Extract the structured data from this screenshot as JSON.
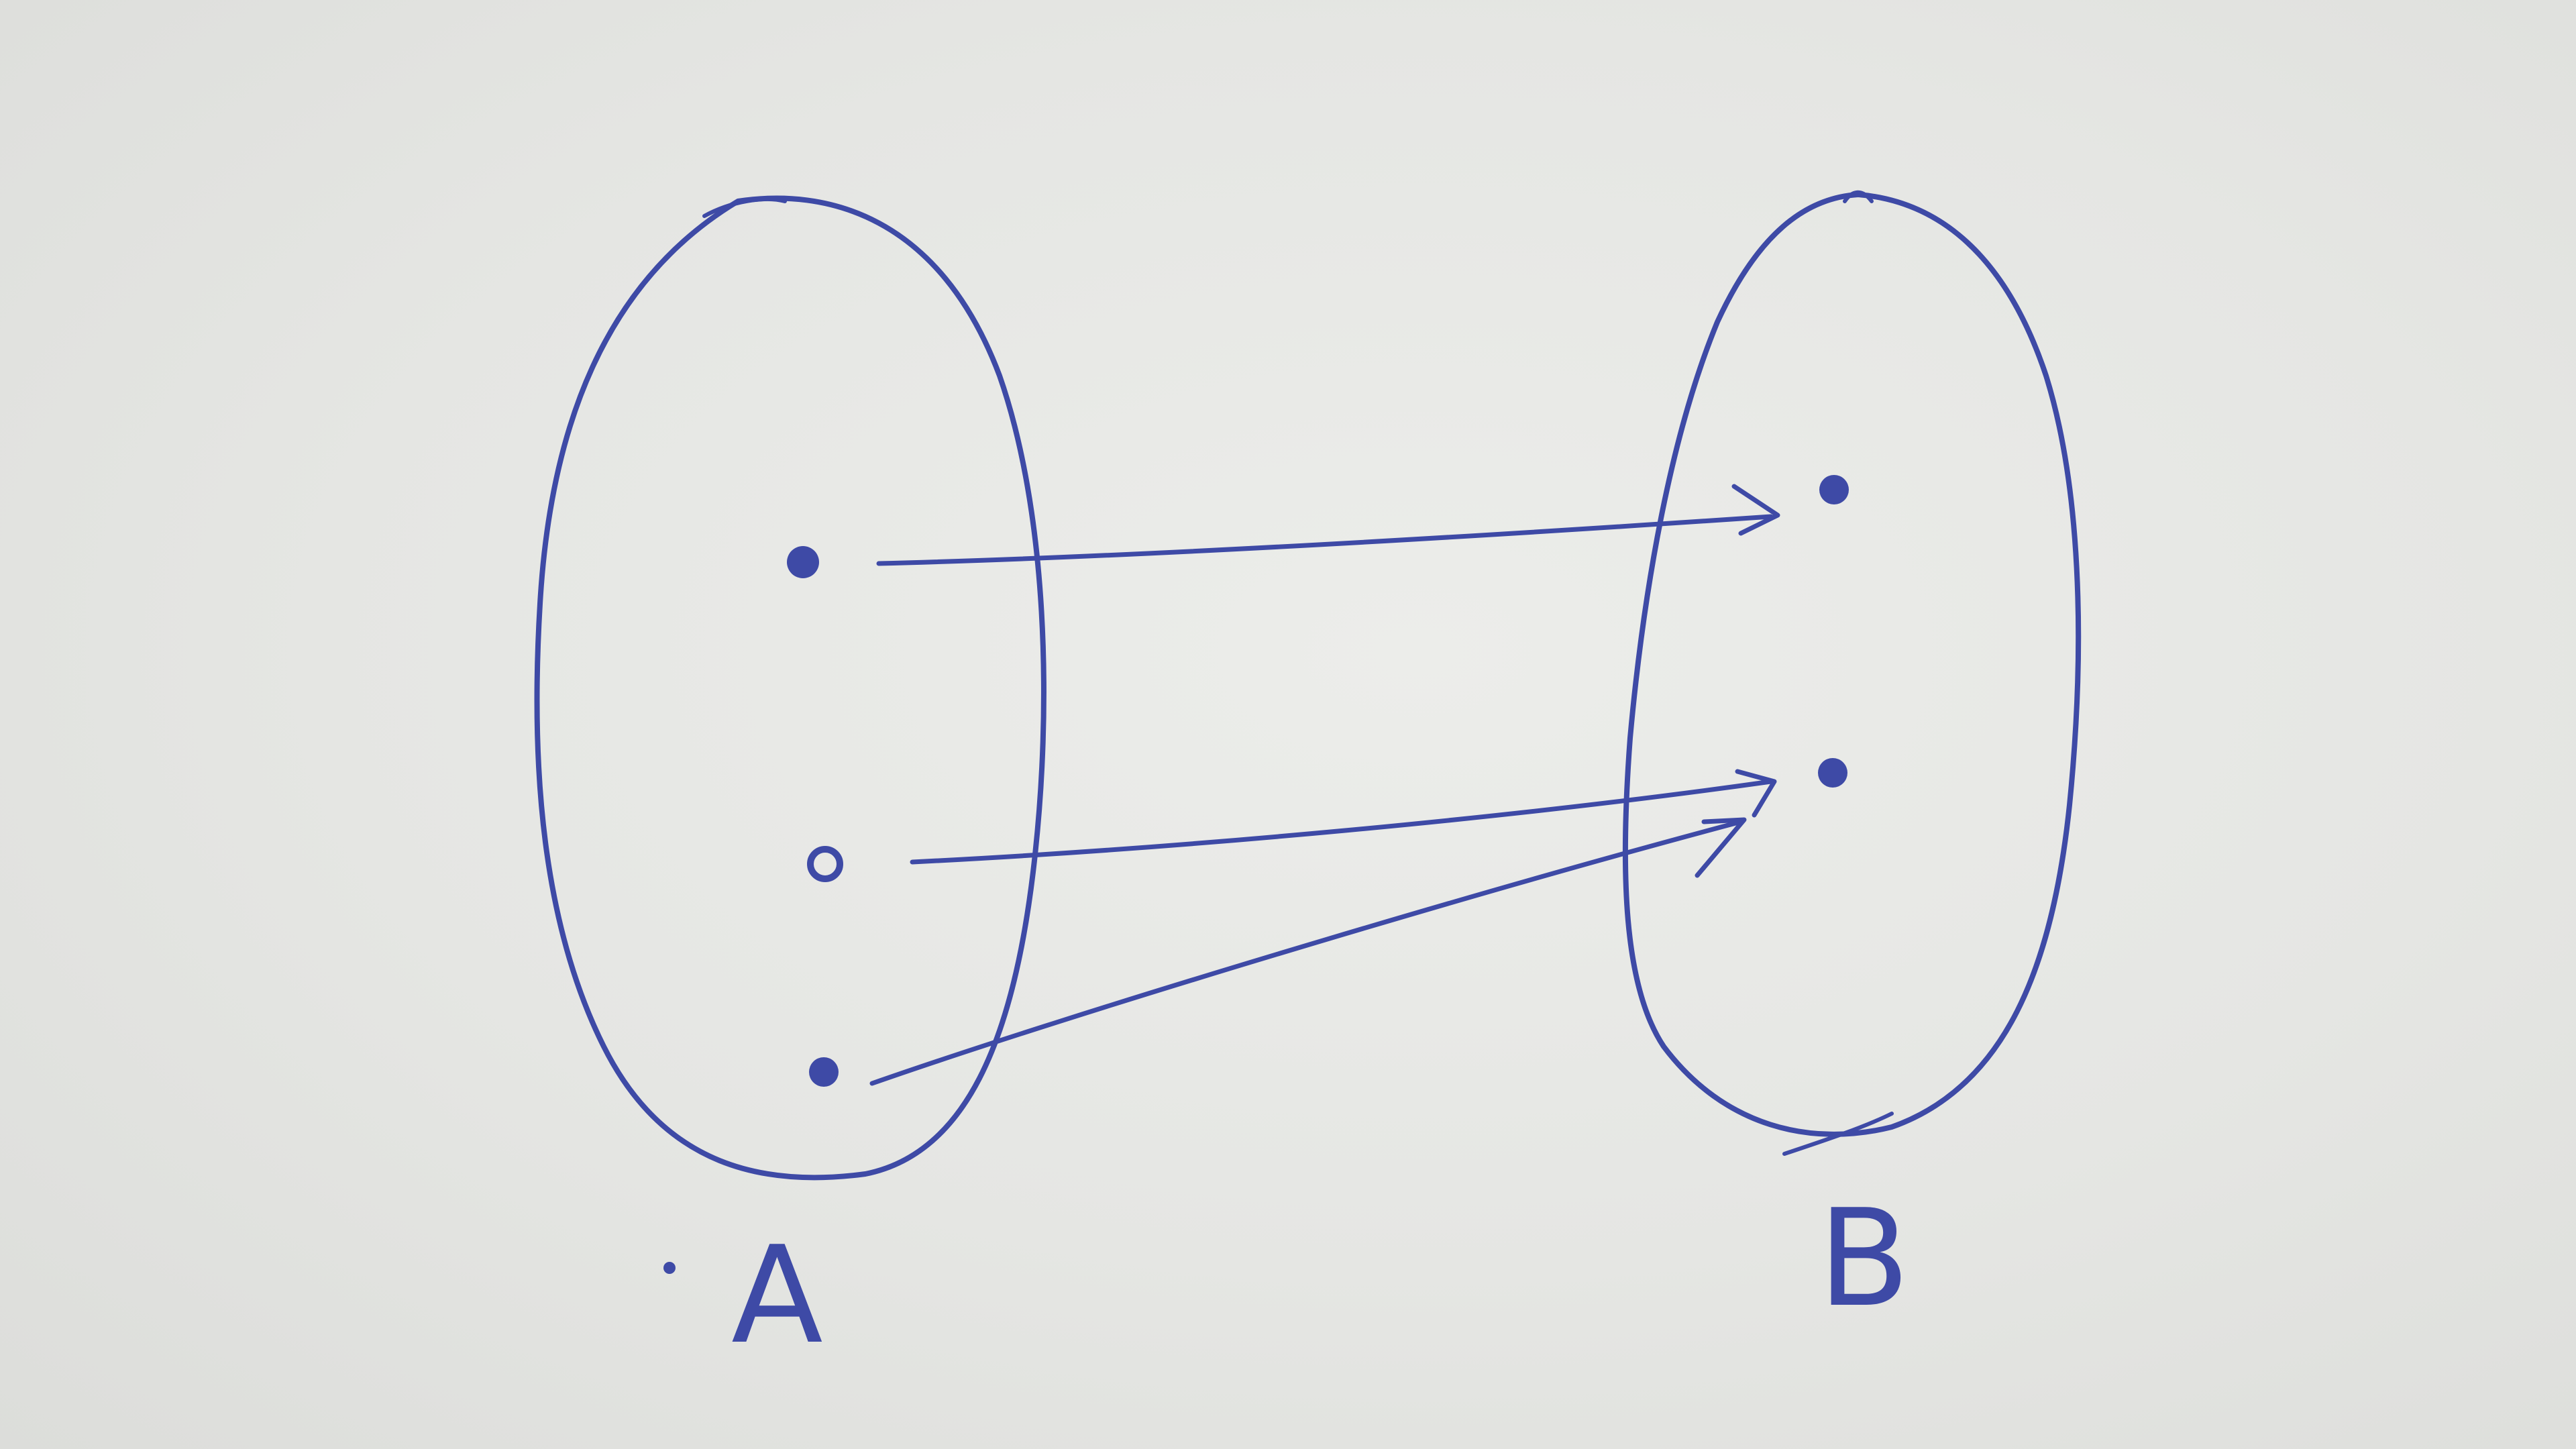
{
  "colors": {
    "paper": "#e7e8e5",
    "ink": "#3e4aa6"
  },
  "sets": [
    {
      "id": "A",
      "label": "A",
      "elements": 3
    },
    {
      "id": "B",
      "label": "B",
      "elements": 2
    }
  ],
  "mapping": [
    {
      "from": {
        "set": "A",
        "element": 1
      },
      "to": {
        "set": "B",
        "element": 1
      }
    },
    {
      "from": {
        "set": "A",
        "element": 2
      },
      "to": {
        "set": "B",
        "element": 2
      }
    },
    {
      "from": {
        "set": "A",
        "element": 3
      },
      "to": {
        "set": "B",
        "element": 2
      }
    }
  ]
}
